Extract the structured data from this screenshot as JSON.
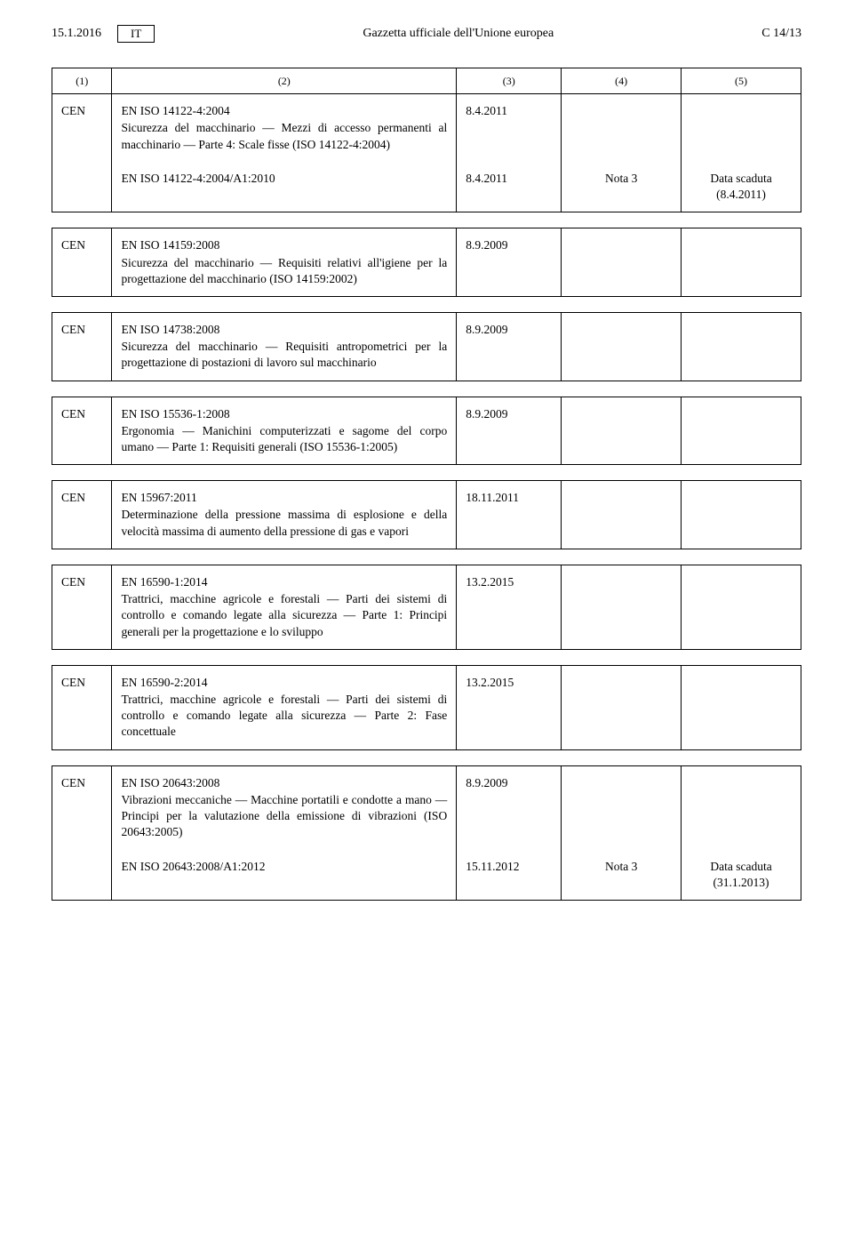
{
  "header": {
    "date": "15.1.2016",
    "lang": "IT",
    "center": "Gazzetta ufficiale dell'Unione europea",
    "right": "C 14/13"
  },
  "cols": [
    "(1)",
    "(2)",
    "(3)",
    "(4)",
    "(5)"
  ],
  "blocks": [
    {
      "rows": [
        {
          "c1": "CEN",
          "c2_title": "EN ISO 14122-4:2004",
          "c2_desc": "Sicurezza del macchinario — Mezzi di accesso permanenti al macchinario — Parte 4: Scale fisse (ISO 14122-4:2004)",
          "c3": "8.4.2011",
          "c4": "",
          "c5": ""
        },
        {
          "c1": "",
          "c2_title": "EN ISO 14122-4:2004/A1:2010",
          "c2_desc": "",
          "c3": "8.4.2011",
          "c4": "Nota 3",
          "c5": "Data scaduta\n(8.4.2011)"
        }
      ]
    },
    {
      "rows": [
        {
          "c1": "CEN",
          "c2_title": "EN ISO 14159:2008",
          "c2_desc": "Sicurezza del macchinario — Requisiti relativi all'igiene per la progettazione del macchinario (ISO 14159:2002)",
          "c3": "8.9.2009",
          "c4": "",
          "c5": ""
        }
      ]
    },
    {
      "rows": [
        {
          "c1": "CEN",
          "c2_title": "EN ISO 14738:2008",
          "c2_desc": "Sicurezza del macchinario — Requisiti antropometrici per la progettazione di postazioni di lavoro sul macchinario",
          "c3": "8.9.2009",
          "c4": "",
          "c5": ""
        }
      ]
    },
    {
      "rows": [
        {
          "c1": "CEN",
          "c2_title": "EN ISO 15536-1:2008",
          "c2_desc": "Ergonomia — Manichini computerizzati e sagome del corpo umano — Parte 1: Requisiti generali (ISO 15536-1:2005)",
          "c3": "8.9.2009",
          "c4": "",
          "c5": ""
        }
      ]
    },
    {
      "rows": [
        {
          "c1": "CEN",
          "c2_title": "EN 15967:2011",
          "c2_desc": "Determinazione della pressione massima di esplosione e della velocità massima di aumento della pressione di gas e vapori",
          "c3": "18.11.2011",
          "c4": "",
          "c5": ""
        }
      ]
    },
    {
      "rows": [
        {
          "c1": "CEN",
          "c2_title": "EN 16590-1:2014",
          "c2_desc": "Trattrici, macchine agricole e forestali — Parti dei sistemi di controllo e comando legate alla sicurezza — Parte 1: Principi generali per la progettazione e lo sviluppo",
          "c3": "13.2.2015",
          "c4": "",
          "c5": ""
        }
      ]
    },
    {
      "rows": [
        {
          "c1": "CEN",
          "c2_title": "EN 16590-2:2014",
          "c2_desc": "Trattrici, macchine agricole e forestali — Parti dei sistemi di controllo e comando legate alla sicurezza — Parte 2: Fase concettuale",
          "c3": "13.2.2015",
          "c4": "",
          "c5": ""
        }
      ]
    },
    {
      "rows": [
        {
          "c1": "CEN",
          "c2_title": "EN ISO 20643:2008",
          "c2_desc": "Vibrazioni meccaniche — Macchine portatili e condotte a mano — Principi per la valutazione della emissione di vibrazioni (ISO 20643:2005)",
          "c3": "8.9.2009",
          "c4": "",
          "c5": ""
        },
        {
          "c1": "",
          "c2_title": "EN ISO 20643:2008/A1:2012",
          "c2_desc": "",
          "c3": "15.11.2012",
          "c4": "Nota 3",
          "c5": "Data scaduta\n(31.1.2013)"
        }
      ]
    }
  ]
}
